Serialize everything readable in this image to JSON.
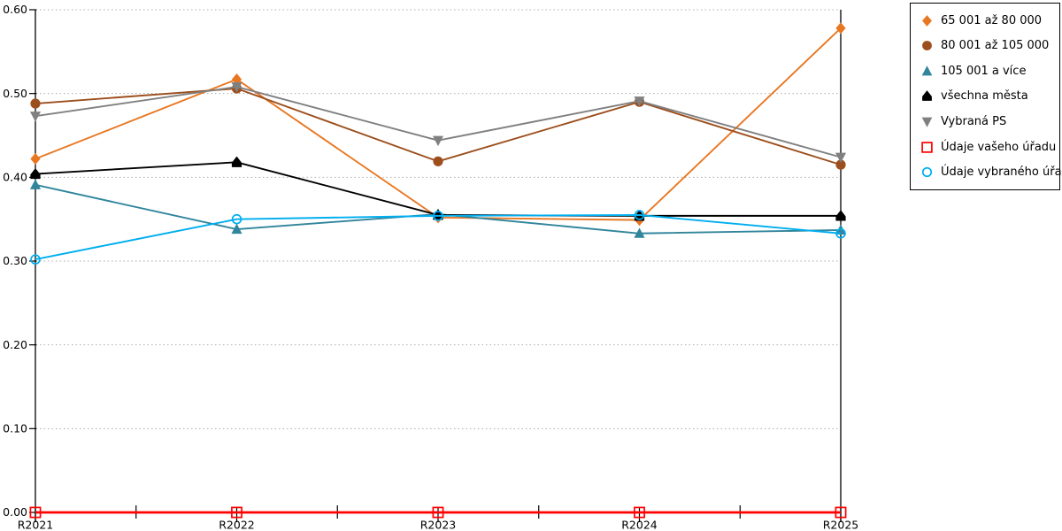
{
  "chart_data": {
    "type": "line",
    "title": "",
    "xlabel": "",
    "ylabel": "",
    "categories": [
      "R2021",
      "R2022",
      "R2023",
      "R2024",
      "R2025"
    ],
    "ylim": [
      0.0,
      0.6
    ],
    "ytick_step": 0.1,
    "y_tick_labels": [
      "0.00",
      "0.10",
      "0.20",
      "0.30",
      "0.40",
      "0.50",
      "0.60"
    ],
    "grid": "horizontal-dotted",
    "legend_position": "right",
    "grid_color": "#ADADAD",
    "axis_color": "#000000",
    "series": [
      {
        "name": "65 001 až 80 000",
        "color": "#E87722",
        "marker": "diamond",
        "values": [
          0.422,
          0.517,
          0.352,
          0.349,
          0.578
        ]
      },
      {
        "name": "80 001 až 105 000",
        "color": "#9C4F1D",
        "marker": "circle",
        "values": [
          0.488,
          0.506,
          0.419,
          0.49,
          0.415
        ]
      },
      {
        "name": "105 001 a více",
        "color": "#31859C",
        "marker": "triangle-up",
        "values": [
          0.391,
          0.338,
          0.356,
          0.333,
          0.337
        ]
      },
      {
        "name": "všechna města",
        "color": "#000000",
        "marker": "pentagon",
        "values": [
          0.404,
          0.418,
          0.355,
          0.354,
          0.354
        ]
      },
      {
        "name": "Vybraná PS",
        "color": "#808080",
        "marker": "triangle-down",
        "values": [
          0.473,
          0.508,
          0.444,
          0.491,
          0.424
        ]
      },
      {
        "name": "Údaje vašeho úřadu",
        "color": "#FF0000",
        "marker": "open-square",
        "values": [
          0.0,
          0.0,
          0.0,
          0.0,
          0.0
        ]
      },
      {
        "name": "Údaje vybraného úřadu",
        "color": "#00AEEF",
        "marker": "open-circle",
        "values": [
          0.302,
          0.35,
          0.354,
          0.355,
          0.333
        ]
      }
    ]
  }
}
